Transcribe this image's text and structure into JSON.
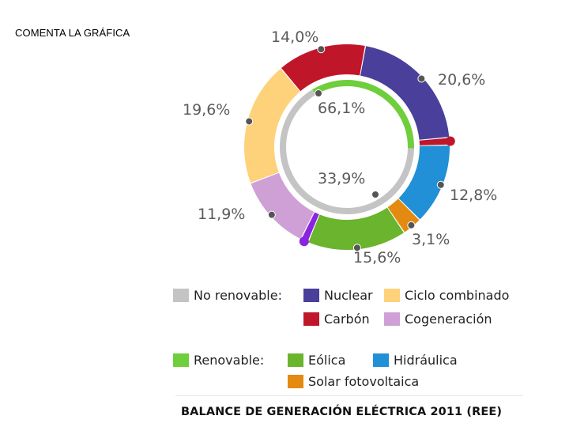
{
  "slide": {
    "heading": "COMENTA LA GRÁFICA",
    "caption": "BALANCE DE GENERACIÓN ELÉCTRICA 2011 (REE)"
  },
  "legend": {
    "no_renovable_label": "No renovable:",
    "renovable_label": "Renovable:",
    "nuclear": "Nuclear",
    "ciclo": "Ciclo combinado",
    "carbon": "Carbón",
    "cogeneracion": "Cogeneración",
    "eolica": "Eólica",
    "hidraulica": "Hidráulica",
    "solar": "Solar fotovoltaica"
  },
  "colors": {
    "no_renovable": "#c4c4c4",
    "renovable": "#6fce3c",
    "nuclear": "#4a3f9a",
    "ciclo": "#fdd27a",
    "carbon": "#c0162a",
    "cogeneracion": "#cfa0d6",
    "eolica": "#6ab42e",
    "hidraulica": "#2190d6",
    "solar": "#e48a10",
    "other": "#8a24e0"
  },
  "chart_data": {
    "type": "pie",
    "title": "BALANCE DE GENERACIÓN ELÉCTRICA 2011 (REE)",
    "outer_ring": [
      {
        "name": "Carbón",
        "value": 14.0,
        "label": "14,0%"
      },
      {
        "name": "Nuclear",
        "value": 20.6,
        "label": "20,6%"
      },
      {
        "name": "",
        "value": 1.2,
        "label": ""
      },
      {
        "name": "Hidráulica",
        "value": 12.8,
        "label": "12,8%"
      },
      {
        "name": "Solar fotovoltaica",
        "value": 3.1,
        "label": "3,1%"
      },
      {
        "name": "Eólica",
        "value": 15.6,
        "label": "15,6%"
      },
      {
        "name": "",
        "value": 1.2,
        "label": ""
      },
      {
        "name": "Cogeneración",
        "value": 11.9,
        "label": "11,9%"
      },
      {
        "name": "Ciclo combinado",
        "value": 19.6,
        "label": "19,6%"
      }
    ],
    "inner_ring": [
      {
        "name": "No renovable",
        "value": 66.1,
        "label": "66,1%"
      },
      {
        "name": "Renovable",
        "value": 33.9,
        "label": "33,9%"
      }
    ]
  }
}
